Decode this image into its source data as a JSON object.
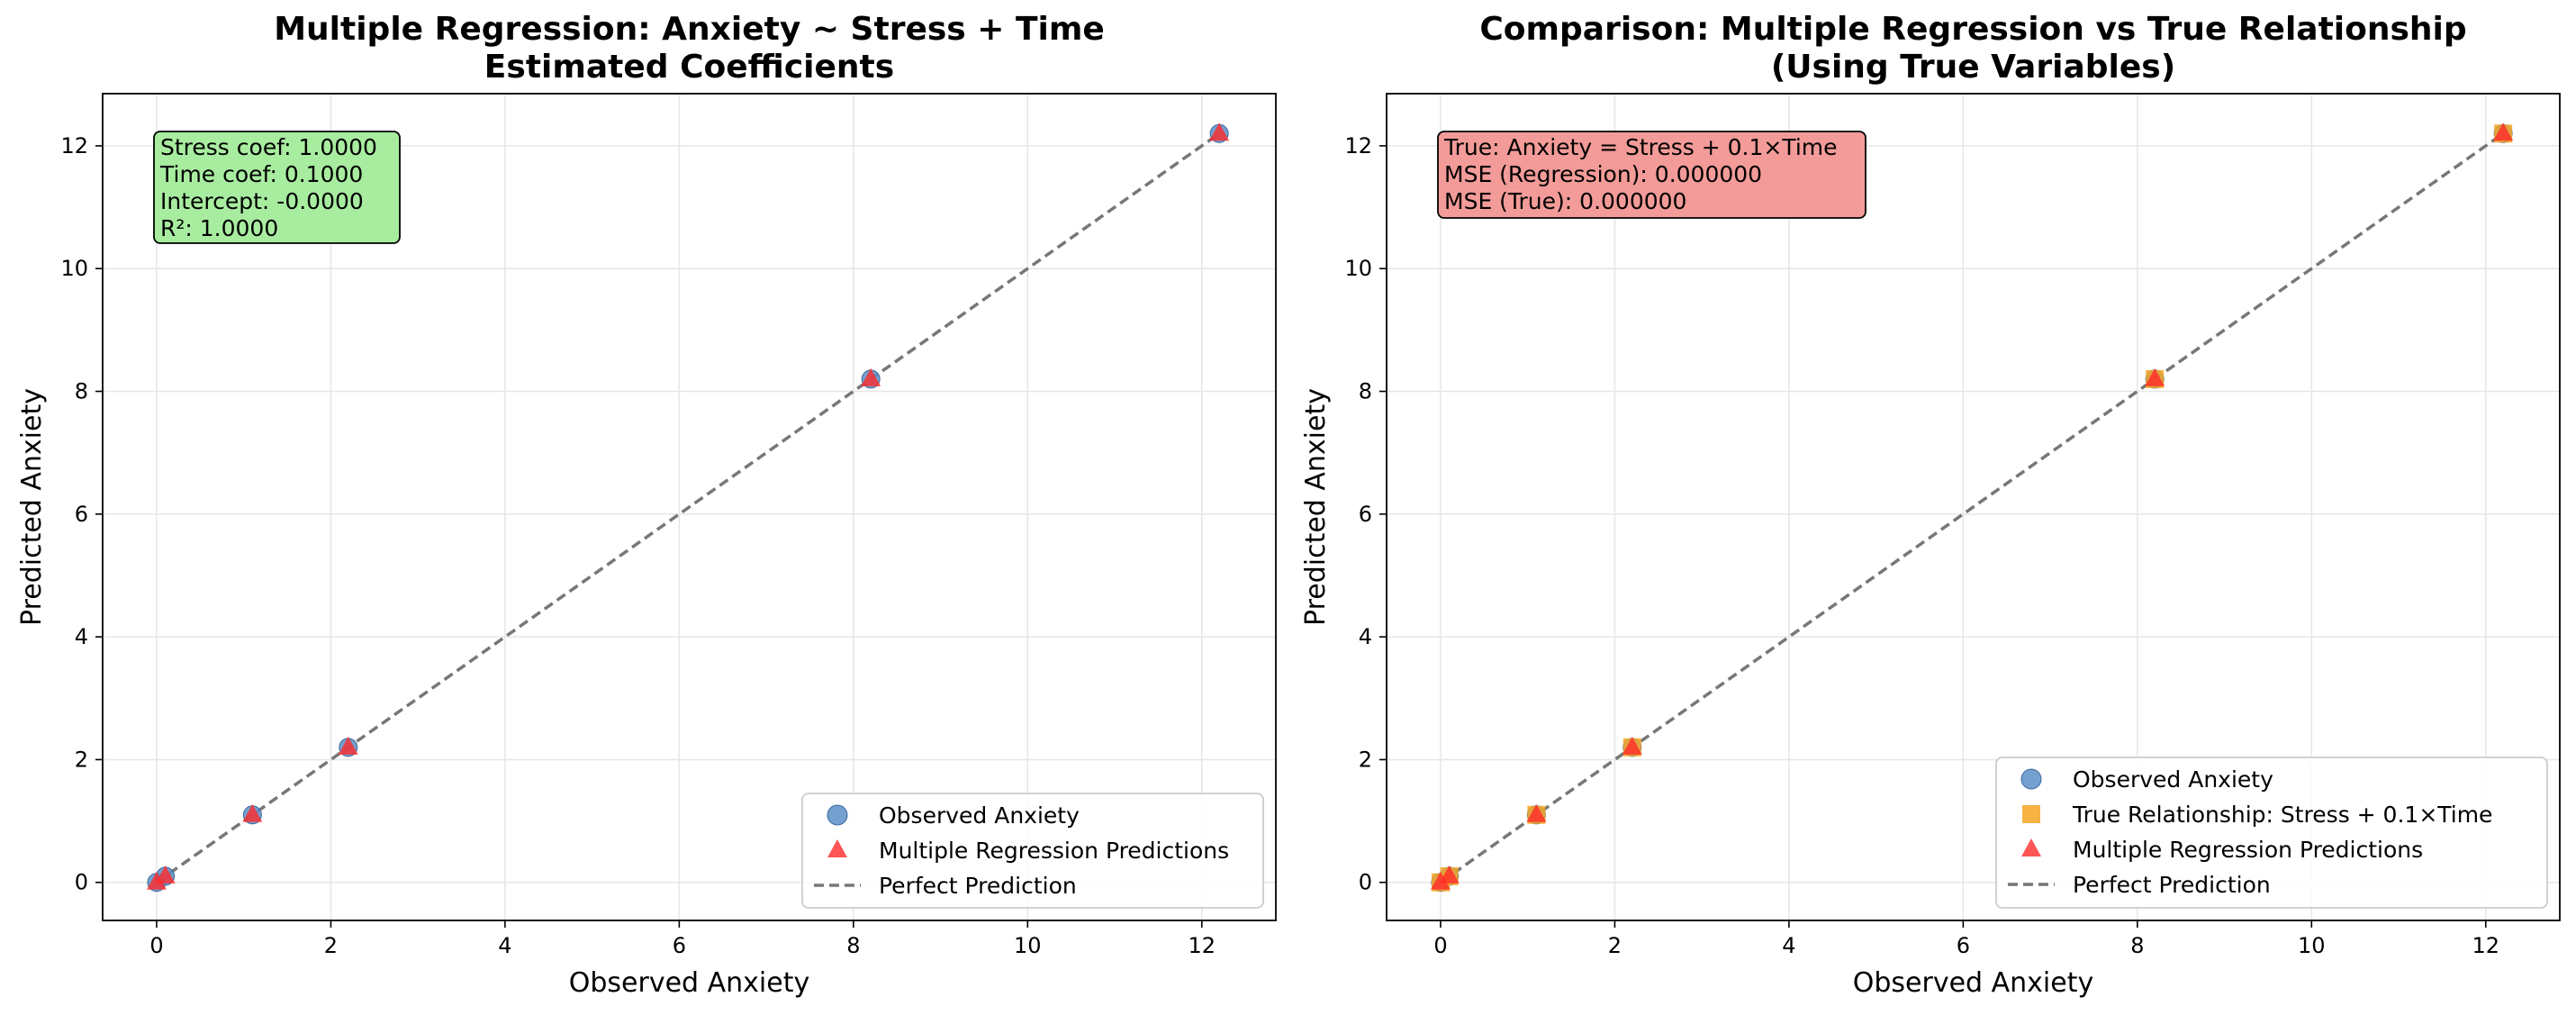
{
  "chart_data": [
    {
      "type": "scatter",
      "title": "Multiple Regression: Anxiety ~ Stress + Time\nEstimated Coefficients",
      "xlabel": "Observed Anxiety",
      "ylabel": "Predicted Anxiety",
      "xlim": [
        -0.62,
        12.85
      ],
      "ylim": [
        -0.62,
        12.85
      ],
      "xticks": [
        0,
        2,
        4,
        6,
        8,
        10,
        12
      ],
      "yticks": [
        0,
        2,
        4,
        6,
        8,
        10,
        12
      ],
      "grid": true,
      "legend_position": "lower-right",
      "annotation": {
        "lines": [
          "Stress coef: 1.0000",
          "Time coef: 0.1000",
          "Intercept: -0.0000",
          "R²: 1.0000"
        ],
        "color": "#a8eca0"
      },
      "series": [
        {
          "name": "Observed Anxiety",
          "marker": "circle",
          "color": "#5b8fc7",
          "x": [
            0.0,
            0.1,
            1.1,
            2.2,
            8.2,
            12.2
          ],
          "y": [
            0.0,
            0.1,
            1.1,
            2.2,
            8.2,
            12.2
          ]
        },
        {
          "name": "Multiple Regression Predictions",
          "marker": "triangle",
          "color": "#ff2a2a",
          "x": [
            0.0,
            0.1,
            1.1,
            2.2,
            8.2,
            12.2
          ],
          "y": [
            0.0,
            0.1,
            1.1,
            2.2,
            8.2,
            12.2
          ]
        },
        {
          "name": "Perfect Prediction",
          "marker": "dashed-line",
          "color": "#777777",
          "x": [
            0,
            12.2
          ],
          "y": [
            0,
            12.2
          ]
        }
      ]
    },
    {
      "type": "scatter",
      "title": "Comparison: Multiple Regression vs True Relationship\n(Using True Variables)",
      "xlabel": "Observed Anxiety",
      "ylabel": "Predicted Anxiety",
      "xlim": [
        -0.62,
        12.85
      ],
      "ylim": [
        -0.62,
        12.85
      ],
      "xticks": [
        0,
        2,
        4,
        6,
        8,
        10,
        12
      ],
      "yticks": [
        0,
        2,
        4,
        6,
        8,
        10,
        12
      ],
      "grid": true,
      "legend_position": "lower-right",
      "annotation": {
        "lines": [
          "True: Anxiety = Stress + 0.1×Time",
          "MSE (Regression): 0.000000",
          "MSE (True): 0.000000"
        ],
        "color": "#f29b98"
      },
      "series": [
        {
          "name": "Observed Anxiety",
          "marker": "circle",
          "color": "#5b8fc7",
          "x": [
            0.0,
            0.1,
            1.1,
            2.2,
            8.2,
            12.2
          ],
          "y": [
            0.0,
            0.1,
            1.1,
            2.2,
            8.2,
            12.2
          ]
        },
        {
          "name": "True Relationship: Stress + 0.1×Time",
          "marker": "square",
          "color": "#f5a623",
          "x": [
            0.0,
            0.1,
            1.1,
            2.2,
            8.2,
            12.2
          ],
          "y": [
            0.0,
            0.1,
            1.1,
            2.2,
            8.2,
            12.2
          ]
        },
        {
          "name": "Multiple Regression Predictions",
          "marker": "triangle",
          "color": "#ff2a2a",
          "x": [
            0.0,
            0.1,
            1.1,
            2.2,
            8.2,
            12.2
          ],
          "y": [
            0.0,
            0.1,
            1.1,
            2.2,
            8.2,
            12.2
          ]
        },
        {
          "name": "Perfect Prediction",
          "marker": "dashed-line",
          "color": "#777777",
          "x": [
            0,
            12.2
          ],
          "y": [
            0,
            12.2
          ]
        }
      ]
    }
  ]
}
